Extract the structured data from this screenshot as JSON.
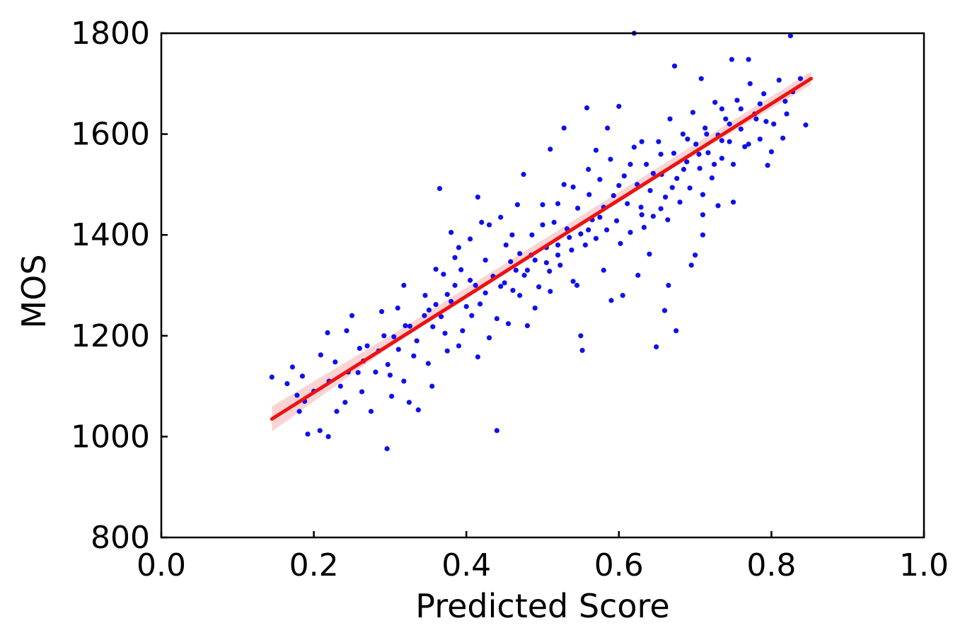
{
  "chart_data": {
    "type": "scatter",
    "title": "",
    "xlabel": "Predicted Score",
    "ylabel": "MOS",
    "xlim": [
      0.0,
      1.0
    ],
    "ylim": [
      800,
      1800
    ],
    "x_ticks": [
      0.0,
      0.2,
      0.4,
      0.6,
      0.8,
      1.0
    ],
    "x_tick_labels": [
      "0.0",
      "0.2",
      "0.4",
      "0.6",
      "0.8",
      "1.0"
    ],
    "y_ticks": [
      800,
      1000,
      1200,
      1400,
      1600,
      1800
    ],
    "y_tick_labels": [
      "800",
      "1000",
      "1200",
      "1400",
      "1600",
      "1800"
    ],
    "grid": false,
    "legend": "none",
    "point_color": "#1010ee",
    "fit_color": "#ee1111",
    "band_color": "#f6b8b8",
    "fit_line": {
      "x": [
        0.145,
        0.852
      ],
      "y": [
        1035,
        1710
      ]
    },
    "confidence_band": {
      "x": [
        0.145,
        0.3,
        0.5,
        0.7,
        0.852
      ],
      "lower": [
        1010,
        1178,
        1370,
        1560,
        1698
      ],
      "upper": [
        1060,
        1200,
        1390,
        1580,
        1724
      ]
    },
    "points": [
      [
        0.145,
        1118
      ],
      [
        0.172,
        1138
      ],
      [
        0.178,
        1082
      ],
      [
        0.188,
        1070
      ],
      [
        0.181,
        1050
      ],
      [
        0.192,
        1005
      ],
      [
        0.208,
        1012
      ],
      [
        0.219,
        1000
      ],
      [
        0.209,
        1162
      ],
      [
        0.218,
        1206
      ],
      [
        0.228,
        1148
      ],
      [
        0.235,
        1100
      ],
      [
        0.243,
        1210
      ],
      [
        0.25,
        1240
      ],
      [
        0.241,
        1068
      ],
      [
        0.258,
        1127
      ],
      [
        0.263,
        1089
      ],
      [
        0.27,
        1180
      ],
      [
        0.281,
        1128
      ],
      [
        0.289,
        1248
      ],
      [
        0.292,
        1200
      ],
      [
        0.297,
        1143
      ],
      [
        0.302,
        1080
      ],
      [
        0.296,
        976
      ],
      [
        0.311,
        1173
      ],
      [
        0.318,
        1110
      ],
      [
        0.326,
        1219
      ],
      [
        0.331,
        1160
      ],
      [
        0.318,
        1300
      ],
      [
        0.337,
        1053
      ],
      [
        0.346,
        1280
      ],
      [
        0.351,
        1251
      ],
      [
        0.356,
        1218
      ],
      [
        0.36,
        1332
      ],
      [
        0.367,
        1238
      ],
      [
        0.372,
        1205
      ],
      [
        0.375,
        1170
      ],
      [
        0.38,
        1268
      ],
      [
        0.385,
        1300
      ],
      [
        0.39,
        1375
      ],
      [
        0.393,
        1331
      ],
      [
        0.4,
        1258
      ],
      [
        0.407,
        1240
      ],
      [
        0.405,
        1392
      ],
      [
        0.412,
        1300
      ],
      [
        0.418,
        1263
      ],
      [
        0.425,
        1350
      ],
      [
        0.43,
        1420
      ],
      [
        0.435,
        1318
      ],
      [
        0.44,
        1234
      ],
      [
        0.445,
        1298
      ],
      [
        0.44,
        1012
      ],
      [
        0.452,
        1380
      ],
      [
        0.458,
        1347
      ],
      [
        0.461,
        1290
      ],
      [
        0.467,
        1460
      ],
      [
        0.47,
        1363
      ],
      [
        0.476,
        1320
      ],
      [
        0.48,
        1220
      ],
      [
        0.486,
        1400
      ],
      [
        0.49,
        1350
      ],
      [
        0.495,
        1297
      ],
      [
        0.5,
        1460
      ],
      [
        0.505,
        1375
      ],
      [
        0.509,
        1328
      ],
      [
        0.515,
        1425
      ],
      [
        0.52,
        1380
      ],
      [
        0.523,
        1340
      ],
      [
        0.528,
        1500
      ],
      [
        0.532,
        1412
      ],
      [
        0.538,
        1370
      ],
      [
        0.54,
        1308
      ],
      [
        0.546,
        1453
      ],
      [
        0.55,
        1402
      ],
      [
        0.552,
        1171
      ],
      [
        0.556,
        1380
      ],
      [
        0.561,
        1480
      ],
      [
        0.565,
        1430
      ],
      [
        0.57,
        1393
      ],
      [
        0.575,
        1510
      ],
      [
        0.58,
        1455
      ],
      [
        0.584,
        1410
      ],
      [
        0.589,
        1550
      ],
      [
        0.593,
        1478
      ],
      [
        0.597,
        1428
      ],
      [
        0.602,
        1383
      ],
      [
        0.607,
        1517
      ],
      [
        0.611,
        1462
      ],
      [
        0.615,
        1405
      ],
      [
        0.62,
        1574
      ],
      [
        0.624,
        1500
      ],
      [
        0.629,
        1455
      ],
      [
        0.633,
        1415
      ],
      [
        0.636,
        1540
      ],
      [
        0.641,
        1488
      ],
      [
        0.645,
        1437
      ],
      [
        0.649,
        1178
      ],
      [
        0.652,
        1585
      ],
      [
        0.656,
        1520
      ],
      [
        0.661,
        1475
      ],
      [
        0.664,
        1430
      ],
      [
        0.667,
        1630
      ],
      [
        0.672,
        1562
      ],
      [
        0.676,
        1512
      ],
      [
        0.68,
        1465
      ],
      [
        0.684,
        1600
      ],
      [
        0.689,
        1545
      ],
      [
        0.693,
        1493
      ],
      [
        0.697,
        1643
      ],
      [
        0.701,
        1580
      ],
      [
        0.706,
        1532
      ],
      [
        0.71,
        1480
      ],
      [
        0.713,
        1612
      ],
      [
        0.717,
        1563
      ],
      [
        0.722,
        1513
      ],
      [
        0.726,
        1663
      ],
      [
        0.73,
        1598
      ],
      [
        0.735,
        1552
      ],
      [
        0.74,
        1630
      ],
      [
        0.745,
        1585
      ],
      [
        0.75,
        1540
      ],
      [
        0.755,
        1667
      ],
      [
        0.76,
        1610
      ],
      [
        0.765,
        1575
      ],
      [
        0.772,
        1700
      ],
      [
        0.778,
        1640
      ],
      [
        0.785,
        1590
      ],
      [
        0.79,
        1680
      ],
      [
        0.795,
        1538
      ],
      [
        0.803,
        1620
      ],
      [
        0.81,
        1707
      ],
      [
        0.818,
        1665
      ],
      [
        0.828,
        1684
      ],
      [
        0.838,
        1710
      ],
      [
        0.845,
        1618
      ],
      [
        0.825,
        1795
      ],
      [
        0.62,
        1800
      ],
      [
        0.77,
        1748
      ],
      [
        0.748,
        1748
      ],
      [
        0.673,
        1735
      ],
      [
        0.365,
        1492
      ],
      [
        0.38,
        1405
      ],
      [
        0.415,
        1475
      ],
      [
        0.528,
        1612
      ],
      [
        0.558,
        1652
      ],
      [
        0.585,
        1612
      ],
      [
        0.6,
        1655
      ],
      [
        0.708,
        1710
      ],
      [
        0.71,
        1400
      ],
      [
        0.675,
        1210
      ],
      [
        0.66,
        1250
      ],
      [
        0.665,
        1300
      ],
      [
        0.7,
        1360
      ],
      [
        0.695,
        1340
      ],
      [
        0.71,
        1440
      ],
      [
        0.73,
        1458
      ],
      [
        0.75,
        1465
      ],
      [
        0.48,
        1330
      ],
      [
        0.47,
        1280
      ],
      [
        0.395,
        1210
      ],
      [
        0.26,
        1175
      ],
      [
        0.275,
        1050
      ],
      [
        0.23,
        1050
      ],
      [
        0.165,
        1105
      ],
      [
        0.35,
        1145
      ],
      [
        0.415,
        1158
      ],
      [
        0.355,
        1100
      ],
      [
        0.475,
        1520
      ],
      [
        0.51,
        1570
      ],
      [
        0.55,
        1200
      ],
      [
        0.59,
        1270
      ],
      [
        0.605,
        1280
      ],
      [
        0.625,
        1320
      ],
      [
        0.64,
        1362
      ],
      [
        0.58,
        1330
      ],
      [
        0.545,
        1300
      ],
      [
        0.51,
        1288
      ],
      [
        0.49,
        1255
      ],
      [
        0.455,
        1224
      ],
      [
        0.43,
        1196
      ],
      [
        0.39,
        1180
      ],
      [
        0.325,
        1068
      ],
      [
        0.3,
        1122
      ],
      [
        0.31,
        1255
      ],
      [
        0.335,
        1190
      ],
      [
        0.37,
        1322
      ],
      [
        0.385,
        1355
      ],
      [
        0.42,
        1425
      ],
      [
        0.445,
        1435
      ],
      [
        0.46,
        1400
      ],
      [
        0.5,
        1420
      ],
      [
        0.52,
        1462
      ],
      [
        0.54,
        1495
      ],
      [
        0.56,
        1530
      ],
      [
        0.57,
        1568
      ],
      [
        0.6,
        1498
      ],
      [
        0.615,
        1540
      ],
      [
        0.63,
        1585
      ],
      [
        0.645,
        1522
      ],
      [
        0.655,
        1560
      ],
      [
        0.67,
        1494
      ],
      [
        0.685,
        1530
      ],
      [
        0.69,
        1590
      ],
      [
        0.705,
        1560
      ],
      [
        0.715,
        1600
      ],
      [
        0.725,
        1540
      ],
      [
        0.735,
        1587
      ],
      [
        0.745,
        1620
      ],
      [
        0.76,
        1650
      ],
      [
        0.77,
        1580
      ],
      [
        0.78,
        1630
      ],
      [
        0.735,
        1650
      ],
      [
        0.655,
        1452
      ],
      [
        0.63,
        1440
      ],
      [
        0.575,
        1435
      ],
      [
        0.56,
        1410
      ],
      [
        0.535,
        1395
      ],
      [
        0.52,
        1360
      ],
      [
        0.505,
        1345
      ],
      [
        0.485,
        1360
      ],
      [
        0.465,
        1330
      ],
      [
        0.45,
        1305
      ],
      [
        0.425,
        1285
      ],
      [
        0.405,
        1310
      ],
      [
        0.375,
        1282
      ],
      [
        0.36,
        1262
      ],
      [
        0.345,
        1240
      ],
      [
        0.32,
        1220
      ],
      [
        0.305,
        1198
      ],
      [
        0.285,
        1170
      ],
      [
        0.265,
        1150
      ],
      [
        0.245,
        1128
      ],
      [
        0.22,
        1110
      ],
      [
        0.2,
        1090
      ],
      [
        0.185,
        1120
      ],
      [
        0.8,
        1565
      ],
      [
        0.793,
        1625
      ],
      [
        0.785,
        1660
      ],
      [
        0.815,
        1592
      ],
      [
        0.82,
        1640
      ]
    ]
  }
}
